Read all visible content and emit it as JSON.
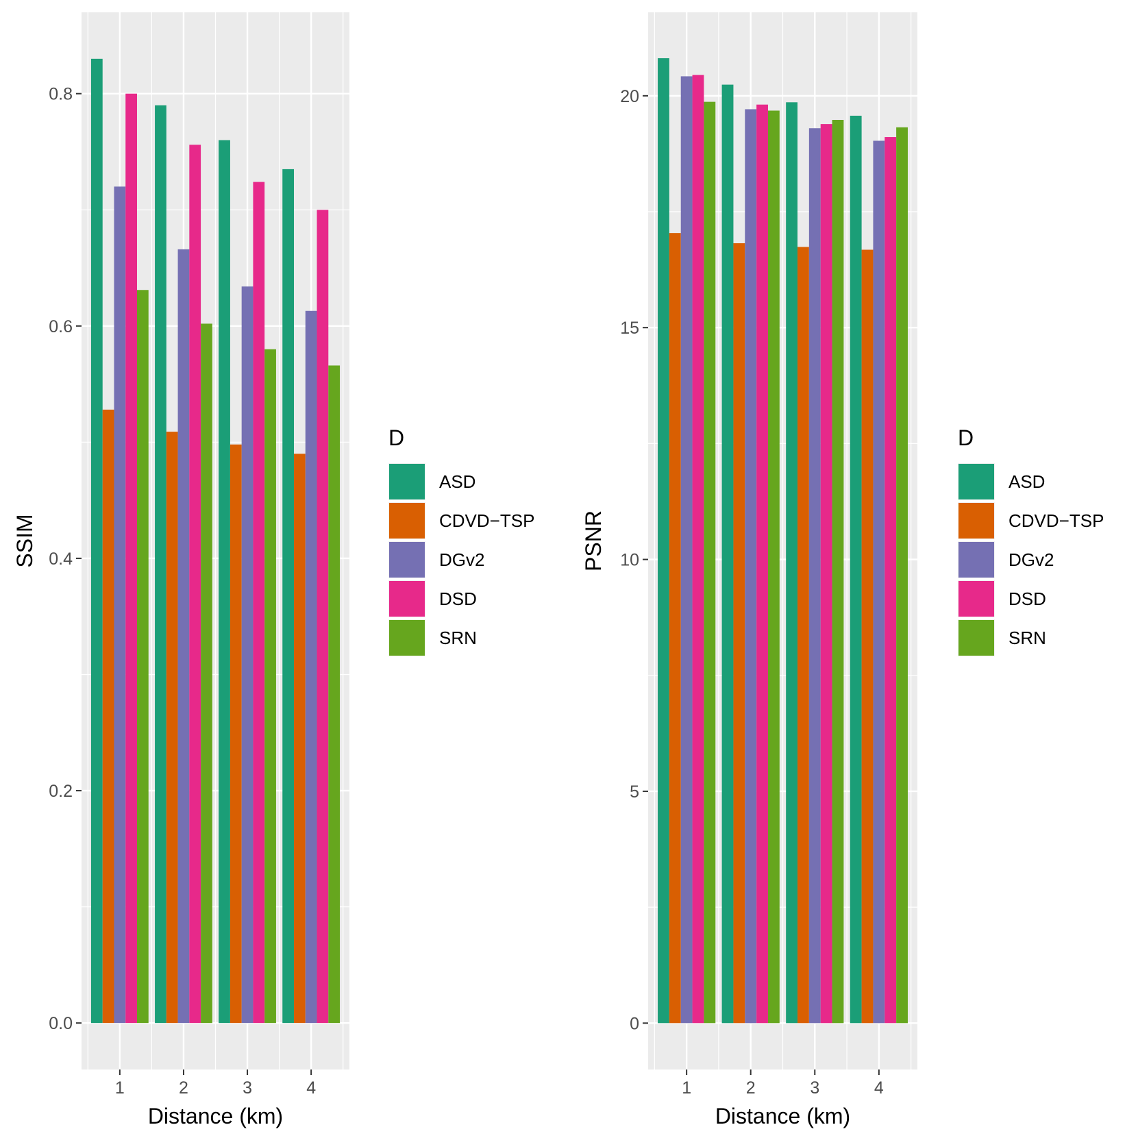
{
  "chart_data": [
    {
      "type": "bar",
      "categories": [
        "1",
        "2",
        "3",
        "4"
      ],
      "xlabel": "Distance (km)",
      "ylabel": "SSIM",
      "ylim": [
        -0.04,
        0.87
      ],
      "yticks": [
        "0.0",
        "0.2",
        "0.4",
        "0.6",
        "0.8"
      ],
      "legend_title": "D",
      "legend_position": "right",
      "grid": true,
      "series": [
        {
          "name": "ASD",
          "color": "#1B9E77",
          "values": [
            0.83,
            0.79,
            0.76,
            0.735
          ]
        },
        {
          "name": "CDVD−TSP",
          "color": "#D95F02",
          "values": [
            0.528,
            0.509,
            0.498,
            0.49
          ]
        },
        {
          "name": "DGv2",
          "color": "#7570B3",
          "values": [
            0.72,
            0.666,
            0.634,
            0.613
          ]
        },
        {
          "name": "DSD",
          "color": "#E7298A",
          "values": [
            0.8,
            0.756,
            0.724,
            0.7
          ]
        },
        {
          "name": "SRN",
          "color": "#66A61E",
          "values": [
            0.631,
            0.602,
            0.58,
            0.566
          ]
        }
      ]
    },
    {
      "type": "bar",
      "categories": [
        "1",
        "2",
        "3",
        "4"
      ],
      "xlabel": "Distance (km)",
      "ylabel": "PSNR",
      "ylim": [
        -1.0,
        21.8
      ],
      "yticks": [
        "0",
        "5",
        "10",
        "15",
        "20"
      ],
      "legend_title": "D",
      "legend_position": "right",
      "grid": true,
      "series": [
        {
          "name": "ASD",
          "color": "#1B9E77",
          "values": [
            20.81,
            20.24,
            19.86,
            19.57
          ]
        },
        {
          "name": "CDVD−TSP",
          "color": "#D95F02",
          "values": [
            17.04,
            16.82,
            16.74,
            16.68
          ]
        },
        {
          "name": "DGv2",
          "color": "#7570B3",
          "values": [
            20.42,
            19.71,
            19.3,
            19.03
          ]
        },
        {
          "name": "DSD",
          "color": "#E7298A",
          "values": [
            20.45,
            19.81,
            19.39,
            19.11
          ]
        },
        {
          "name": "SRN",
          "color": "#66A61E",
          "values": [
            19.87,
            19.68,
            19.48,
            19.32
          ]
        }
      ]
    }
  ]
}
